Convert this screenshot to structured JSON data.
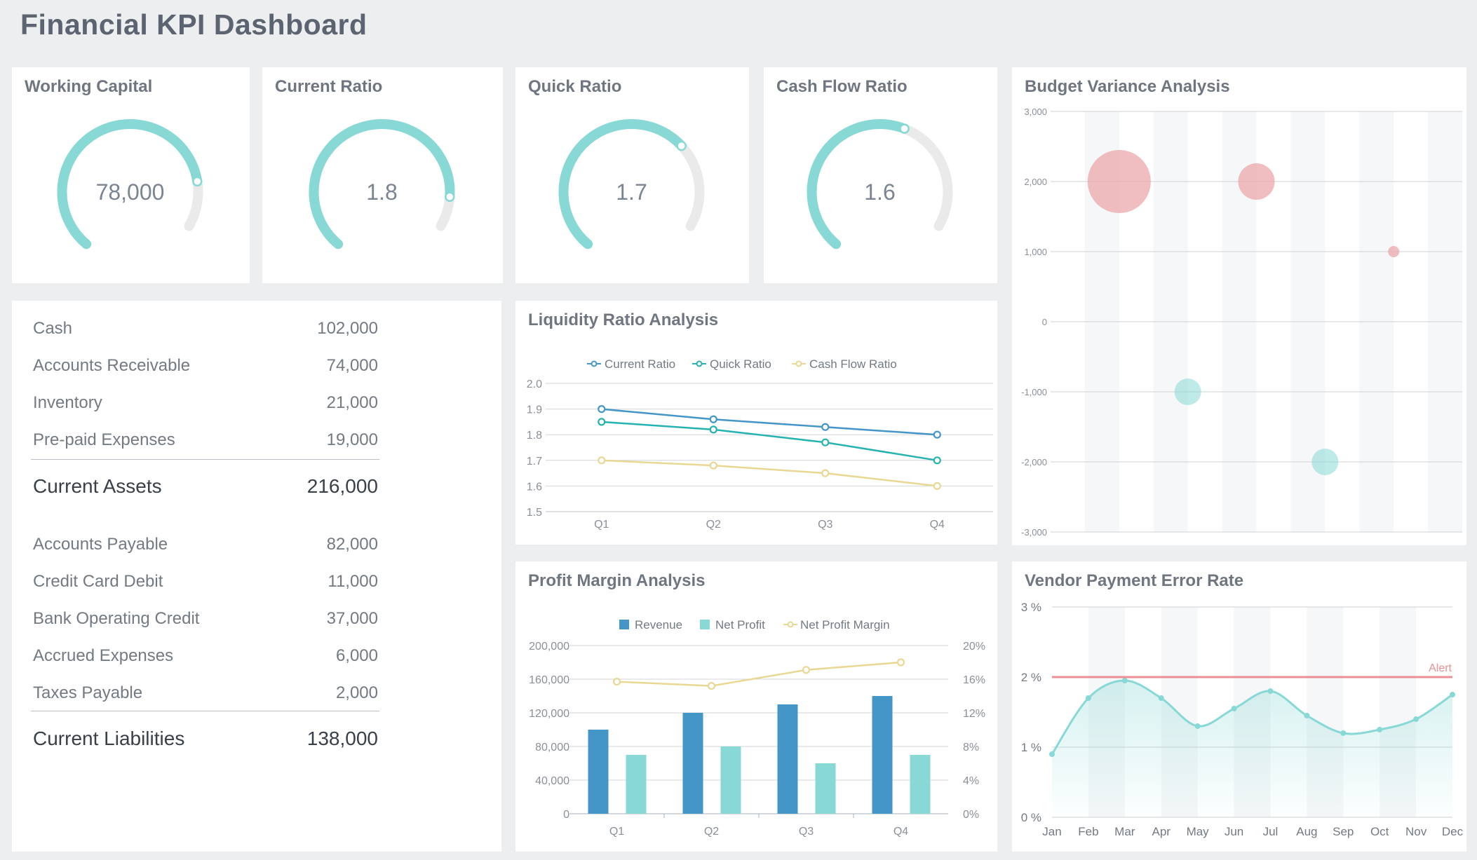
{
  "dashboard": {
    "title": "Financial KPI Dashboard"
  },
  "colors": {
    "teal": "#88d9d6",
    "track": "#eaeaea",
    "blue": "#4496c8",
    "teal_dark": "#26b3b0",
    "yellow": "#e8d893",
    "pink": "#eba7ab",
    "alert": "#e98f95"
  },
  "gauges": [
    {
      "title": "Working Capital",
      "value_label": "78,000",
      "fraction": 0.85
    },
    {
      "title": "Current Ratio",
      "value_label": "1.8",
      "fraction": 0.9
    },
    {
      "title": "Quick Ratio",
      "value_label": "1.7",
      "fraction": 0.72
    },
    {
      "title": "Cash Flow Ratio",
      "value_label": "1.6",
      "fraction": 0.62
    }
  ],
  "balance_sheet": {
    "assets": [
      {
        "label": "Cash",
        "value": "102,000"
      },
      {
        "label": "Accounts Receivable",
        "value": "74,000"
      },
      {
        "label": "Inventory",
        "value": "21,000"
      },
      {
        "label": "Pre-paid Expenses",
        "value": "19,000"
      }
    ],
    "assets_total": {
      "label": "Current Assets",
      "value": "216,000"
    },
    "liabilities": [
      {
        "label": "Accounts Payable",
        "value": "82,000"
      },
      {
        "label": "Credit Card Debit",
        "value": "11,000"
      },
      {
        "label": "Bank Operating Credit",
        "value": "37,000"
      },
      {
        "label": "Accrued Expenses",
        "value": "6,000"
      },
      {
        "label": "Taxes Payable",
        "value": "2,000"
      }
    ],
    "liabilities_total": {
      "label": "Current Liabilities",
      "value": "138,000"
    }
  },
  "chart_data": [
    {
      "id": "liquidity",
      "type": "line",
      "title": "Liquidity Ratio Analysis",
      "categories": [
        "Q1",
        "Q2",
        "Q3",
        "Q4"
      ],
      "ylim": [
        1.5,
        2.0
      ],
      "yticks": [
        "2.0",
        "1.9",
        "1.8",
        "1.7",
        "1.6",
        "1.5"
      ],
      "legend": "top-center",
      "series": [
        {
          "name": "Current Ratio",
          "values": [
            1.9,
            1.86,
            1.83,
            1.8
          ]
        },
        {
          "name": "Quick Ratio",
          "values": [
            1.85,
            1.82,
            1.77,
            1.7
          ]
        },
        {
          "name": "Cash Flow Ratio",
          "values": [
            1.7,
            1.68,
            1.65,
            1.6
          ]
        }
      ]
    },
    {
      "id": "profit",
      "type": "bar",
      "title": "Profit Margin Analysis",
      "categories": [
        "Q1",
        "Q2",
        "Q3",
        "Q4"
      ],
      "ylim": [
        0,
        200000
      ],
      "yticks": [
        "200,000",
        "160,000",
        "120,000",
        "80,000",
        "40,000",
        "0"
      ],
      "y2lim": [
        0,
        20
      ],
      "y2ticks": [
        "20%",
        "16%",
        "12%",
        "8%",
        "4%",
        "0%"
      ],
      "legend": "top-center",
      "series": [
        {
          "name": "Revenue",
          "values": [
            100000,
            120000,
            130000,
            140000
          ]
        },
        {
          "name": "Net Profit",
          "values": [
            70000,
            80000,
            60000,
            70000
          ]
        },
        {
          "name": "Net Profit Margin",
          "values": [
            15.7,
            15.2,
            17.1,
            18.0
          ]
        }
      ]
    },
    {
      "id": "budget",
      "type": "scatter",
      "title": "Budget Variance Analysis",
      "ylim": [
        -3000,
        3000
      ],
      "yticks": [
        "3,000",
        "2,000",
        "1,000",
        "0",
        "-1,000",
        "-2,000",
        "-3,000"
      ],
      "points": [
        {
          "x": 2,
          "y": 2000,
          "size": 90
        },
        {
          "x": 6,
          "y": 2000,
          "size": 52
        },
        {
          "x": 10,
          "y": 1000,
          "size": 16
        },
        {
          "x": 4,
          "y": -1000,
          "size": 38
        },
        {
          "x": 8,
          "y": -2000,
          "size": 38
        }
      ]
    },
    {
      "id": "vendor",
      "type": "area",
      "title": "Vendor Payment Error Rate",
      "categories": [
        "Jan",
        "Feb",
        "Mar",
        "Apr",
        "May",
        "Jun",
        "Jul",
        "Aug",
        "Sep",
        "Oct",
        "Nov",
        "Dec"
      ],
      "ylim": [
        0,
        3
      ],
      "yticks": [
        "3 %",
        "2 %",
        "1 %",
        "0 %"
      ],
      "alert_value": 2,
      "alert_label": "Alert",
      "values": [
        0.9,
        1.7,
        1.95,
        1.7,
        1.3,
        1.55,
        1.8,
        1.45,
        1.2,
        1.25,
        1.4,
        1.75
      ]
    }
  ]
}
